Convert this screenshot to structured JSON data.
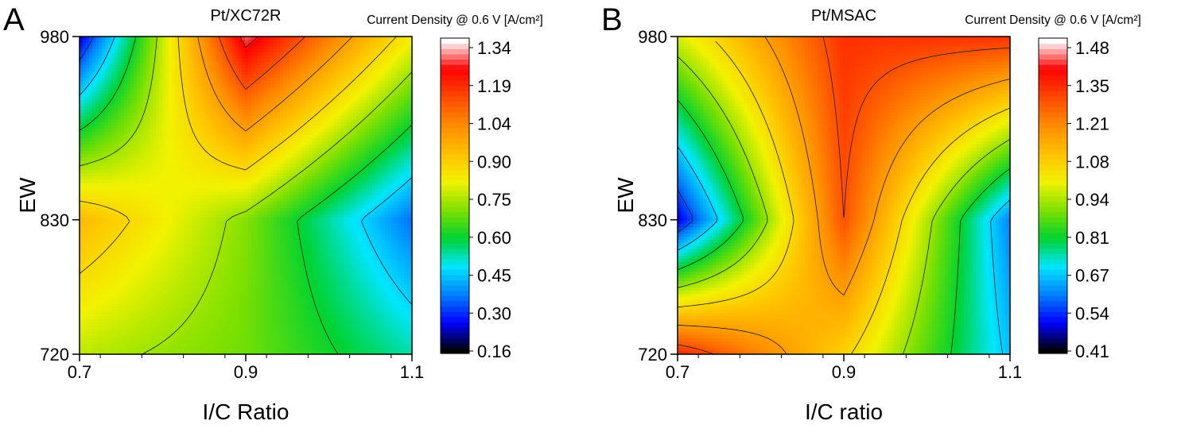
{
  "colorscale": [
    "#000000",
    "#0000ff",
    "#0080ff",
    "#00e6ff",
    "#00d230",
    "#7ee000",
    "#f2f200",
    "#ffc000",
    "#ff8c00",
    "#ff4a00",
    "#ff0000",
    "#ffffff"
  ],
  "contour_line_color": "#1a1a1a",
  "chart_data": [
    {
      "type": "heatmap",
      "panel_label": "A",
      "title": "Pt/XC72R",
      "colorbar_title": "Current Density @ 0.6 V [A/cm²]",
      "xlabel": "I/C Ratio",
      "ylabel": "EW",
      "xlim": [
        0.7,
        1.1
      ],
      "ylim": [
        720,
        980
      ],
      "x_ticks": [
        "0.7",
        "0.9",
        "1.1"
      ],
      "y_ticks": [
        "720",
        "830",
        "980"
      ],
      "x": [
        0.7,
        0.9,
        1.1
      ],
      "y": [
        720,
        830,
        980
      ],
      "z": [
        [
          0.78,
          0.7,
          0.52
        ],
        [
          0.98,
          0.72,
          0.33
        ],
        [
          0.2,
          1.38,
          0.85
        ]
      ],
      "colorbar_ticks": [
        "1.34",
        "1.19",
        "1.04",
        "0.90",
        "0.75",
        "0.60",
        "0.45",
        "0.30",
        "0.16"
      ],
      "zlim": [
        0.16,
        1.34
      ],
      "contour_levels": [
        0.3,
        0.45,
        0.6,
        0.75,
        0.9,
        1.04,
        1.19,
        1.34
      ]
    },
    {
      "type": "heatmap",
      "panel_label": "B",
      "title": "Pt/MSAC",
      "colorbar_title": "Current Density @ 0.6 V [A/cm²]",
      "xlabel": "I/C ratio",
      "ylabel": "EW",
      "xlim": [
        0.7,
        1.1
      ],
      "ylim": [
        720,
        980
      ],
      "x_ticks": [
        "0.7",
        "0.9",
        "1.1"
      ],
      "y_ticks": [
        "720",
        "830",
        "980"
      ],
      "x": [
        0.7,
        0.9,
        1.1
      ],
      "y": [
        720,
        830,
        980
      ],
      "z": [
        [
          1.42,
          1.1,
          0.65
        ],
        [
          0.45,
          1.35,
          0.58
        ],
        [
          1.0,
          1.4,
          1.4
        ]
      ],
      "colorbar_ticks": [
        "1.48",
        "1.35",
        "1.21",
        "1.08",
        "0.94",
        "0.81",
        "0.67",
        "0.54",
        "0.41"
      ],
      "zlim": [
        0.41,
        1.48
      ],
      "contour_levels": [
        0.54,
        0.67,
        0.81,
        0.94,
        1.08,
        1.21,
        1.35
      ]
    }
  ]
}
